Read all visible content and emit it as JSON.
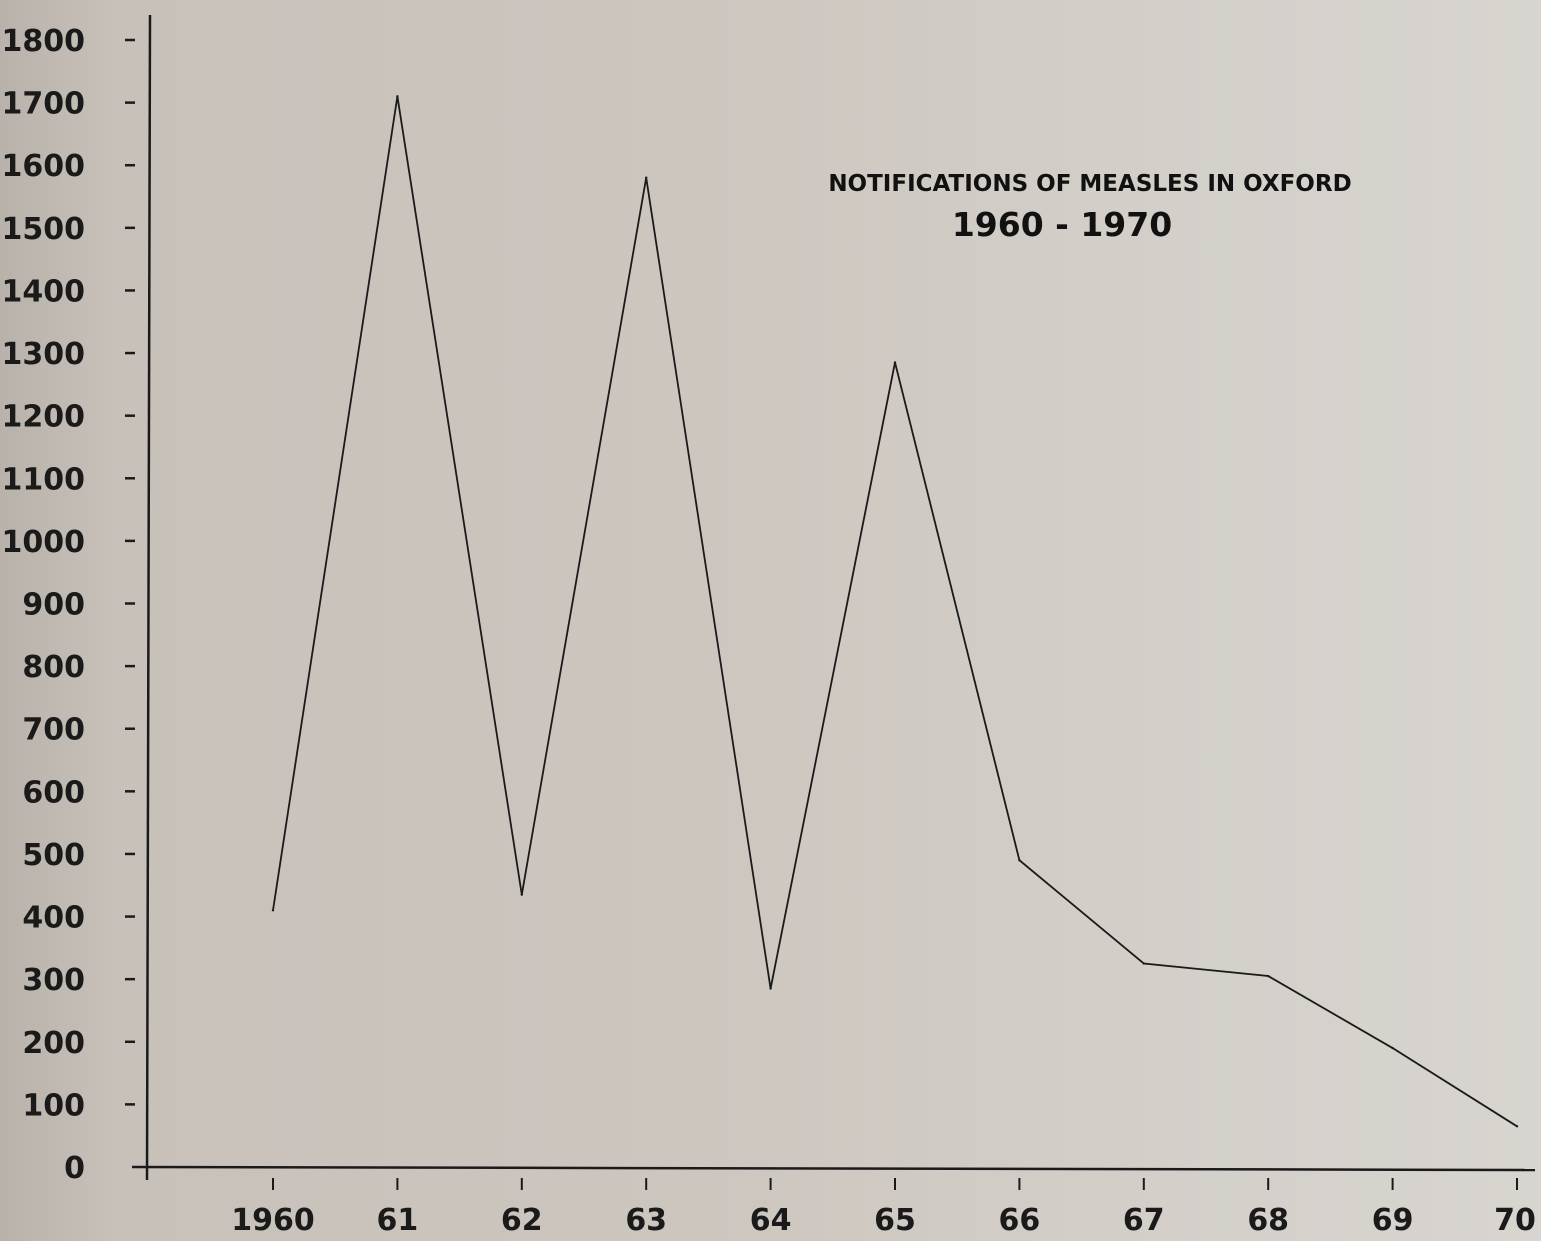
{
  "chart_data": {
    "type": "line",
    "title": "NOTIFICATIONS OF MEASLES IN OXFORD",
    "subtitle": "1960 - 1970",
    "xlabel": "",
    "ylabel": "",
    "x": [
      1960,
      1961,
      1962,
      1963,
      1964,
      1965,
      1966,
      1967,
      1968,
      1969,
      1970
    ],
    "x_tick_labels": [
      "1960",
      "61",
      "62",
      "63",
      "64",
      "65",
      "66",
      "67",
      "68",
      "69",
      "70"
    ],
    "series": [
      {
        "values": [
          410,
          1710,
          435,
          1580,
          285,
          1285,
          490,
          325,
          305,
          190,
          65
        ]
      }
    ],
    "ylim": [
      0,
      1800
    ],
    "y_ticks": [
      0,
      100,
      200,
      300,
      400,
      500,
      600,
      700,
      800,
      900,
      1000,
      1100,
      1200,
      1300,
      1400,
      1500,
      1600,
      1700,
      1800
    ],
    "grid": false,
    "legend": "none",
    "colors": {
      "line": "#1a1a1a",
      "axis": "#1a1a1a",
      "background": "#cdc6bf"
    }
  }
}
